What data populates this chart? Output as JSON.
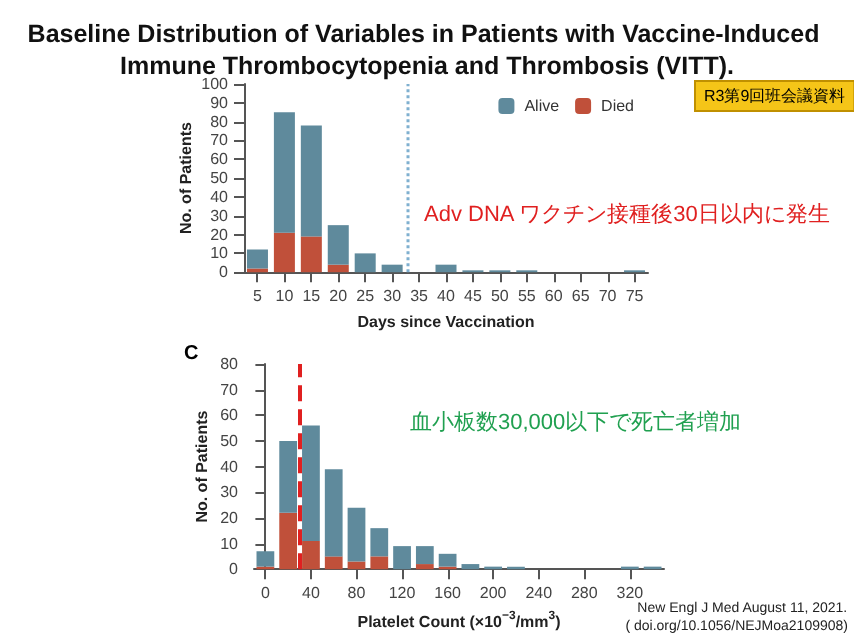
{
  "chart_data": [
    {
      "type": "bar",
      "title": "Baseline Distribution of Variables in Patients with Vaccine-Induced Immune Thrombocytopenia and Thrombosis (VITT).",
      "xlabel": "Days since Vaccination",
      "ylabel": "No. of Patients",
      "stacked": true,
      "legend": "top right",
      "grid": false,
      "x": [
        5,
        10,
        15,
        20,
        25,
        30,
        35,
        40,
        45,
        50,
        55,
        60,
        65,
        70,
        75
      ],
      "series": [
        {
          "name": "Died",
          "color": "#c0503a",
          "values": [
            2,
            21,
            19,
            4,
            0,
            0,
            0,
            0,
            0,
            0,
            0,
            0,
            0,
            0,
            0
          ]
        },
        {
          "name": "Alive",
          "color": "#5f8a9c",
          "values": [
            10,
            64,
            59,
            21,
            10,
            4,
            0,
            4,
            1,
            1,
            1,
            0,
            0,
            0,
            1
          ]
        }
      ],
      "xlim": [
        2.5,
        77.5
      ],
      "xticks": [
        5,
        10,
        15,
        20,
        25,
        30,
        35,
        40,
        45,
        50,
        55,
        60,
        65,
        70,
        75
      ],
      "ylim": [
        0,
        100
      ],
      "yticks": [
        0,
        10,
        20,
        30,
        40,
        50,
        60,
        70,
        80,
        90,
        100
      ],
      "ref_lines": [
        {
          "axis": "x",
          "value": 33,
          "color": "#7fb0d0",
          "line_style": "dotted"
        }
      ],
      "annotations": [
        "R3第9回班会議資料",
        "Adv DNA ワクチン接種後30日以内に発生"
      ]
    },
    {
      "type": "bar",
      "xlabel": "Platelet Count (×10$^{−3}$/mm$^{3}$)",
      "ylabel": "No. of Patients",
      "stacked": true,
      "legend": false,
      "grid": false,
      "x": [
        0,
        20,
        40,
        60,
        80,
        100,
        120,
        140,
        160,
        180,
        200,
        220,
        240,
        260,
        280,
        300,
        320,
        340
      ],
      "series": [
        {
          "color": "#c0503a",
          "values": [
            1,
            22,
            11,
            5,
            3,
            5,
            0,
            2,
            1,
            0,
            0,
            0,
            0,
            0,
            0,
            0,
            0,
            0
          ]
        },
        {
          "color": "#5f8a9c",
          "values": [
            6,
            28,
            45,
            34,
            21,
            11,
            9,
            7,
            5,
            2,
            1,
            1,
            0,
            0,
            0,
            0,
            1,
            1
          ]
        }
      ],
      "xlim": [
        -10,
        350
      ],
      "xticks": [
        0,
        40,
        80,
        120,
        160,
        200,
        240,
        280,
        320
      ],
      "ylim": [
        0,
        80
      ],
      "yticks": [
        0,
        10,
        20,
        30,
        40,
        50,
        60,
        70,
        80
      ],
      "ref_lines": [
        {
          "axis": "x",
          "value": 30,
          "color": "#e02020",
          "line_style": "dashed"
        }
      ],
      "annotations": [
        "C",
        "血小板数30,000以下で死亡者増加",
        "New Engl J Med August 11, 2021.",
        "( doi.org/10.1056/NEJMoa2109908)"
      ]
    }
  ]
}
